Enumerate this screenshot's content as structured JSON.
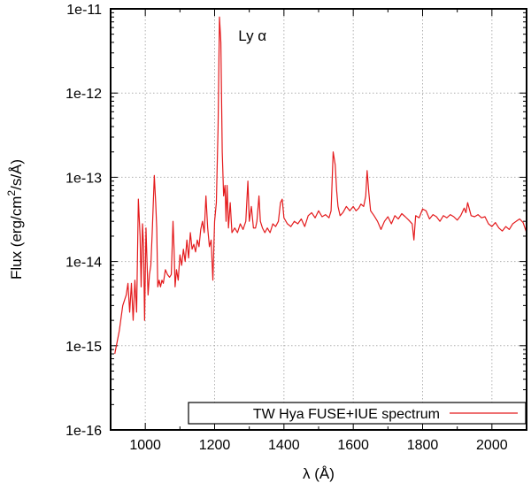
{
  "chart_data": {
    "type": "line",
    "title": "",
    "xlabel": "λ (Å)",
    "ylabel_parts": [
      "Flux (erg/cm",
      "2",
      "/s/Å)"
    ],
    "xlim": [
      900,
      2100
    ],
    "ylim": [
      1e-16,
      1e-11
    ],
    "yscale": "log",
    "grid": true,
    "legend_position": "bottom-right",
    "line_color": "#e41a1c",
    "x_ticks": [
      1000,
      1200,
      1400,
      1600,
      1800,
      2000
    ],
    "x_tick_labels": [
      "1000",
      "1200",
      "1400",
      "1600",
      "1800",
      "2000"
    ],
    "y_ticks": [
      1e-16,
      1e-15,
      1e-14,
      1e-13,
      1e-12,
      1e-11
    ],
    "y_tick_labels": [
      "1e-16",
      "1e-15",
      "1e-14",
      "1e-13",
      "1e-12",
      "1e-11"
    ],
    "annotations": [
      {
        "text": "Ly α",
        "x": 1230,
        "y": 5e-12
      }
    ],
    "series": [
      {
        "name": "TW Hya FUSE+IUE spectrum",
        "points": [
          [
            912,
            8e-16
          ],
          [
            925,
            1.5e-15
          ],
          [
            935,
            3e-15
          ],
          [
            945,
            4e-15
          ],
          [
            950,
            5.5e-15
          ],
          [
            955,
            2.5e-15
          ],
          [
            960,
            5.5e-15
          ],
          [
            965,
            2e-15
          ],
          [
            970,
            6e-15
          ],
          [
            975,
            2.5e-15
          ],
          [
            980,
            5.5e-14
          ],
          [
            985,
            2e-14
          ],
          [
            988,
            5e-15
          ],
          [
            992,
            2.8e-14
          ],
          [
            995,
            1.5e-14
          ],
          [
            998,
            2e-15
          ],
          [
            1002,
            2.5e-14
          ],
          [
            1008,
            4e-15
          ],
          [
            1012,
            7e-15
          ],
          [
            1016,
            9e-15
          ],
          [
            1020,
            2.2e-14
          ],
          [
            1026,
            1.05e-13
          ],
          [
            1030,
            5e-14
          ],
          [
            1033,
            2.5e-14
          ],
          [
            1036,
            5e-15
          ],
          [
            1040,
            6e-15
          ],
          [
            1044,
            5e-15
          ],
          [
            1048,
            6e-15
          ],
          [
            1052,
            5.5e-15
          ],
          [
            1058,
            8e-15
          ],
          [
            1064,
            7e-15
          ],
          [
            1070,
            6.5e-15
          ],
          [
            1075,
            7e-15
          ],
          [
            1080,
            3e-14
          ],
          [
            1083,
            1.4e-14
          ],
          [
            1086,
            5e-15
          ],
          [
            1090,
            8e-15
          ],
          [
            1095,
            6e-15
          ],
          [
            1100,
            1.2e-14
          ],
          [
            1105,
            9e-15
          ],
          [
            1110,
            1.4e-14
          ],
          [
            1115,
            1e-14
          ],
          [
            1120,
            1.8e-14
          ],
          [
            1125,
            1.1e-14
          ],
          [
            1130,
            2.2e-14
          ],
          [
            1135,
            1.4e-14
          ],
          [
            1140,
            1.6e-14
          ],
          [
            1145,
            1.3e-14
          ],
          [
            1150,
            1.8e-14
          ],
          [
            1155,
            1.5e-14
          ],
          [
            1160,
            2.4e-14
          ],
          [
            1165,
            3e-14
          ],
          [
            1170,
            2.2e-14
          ],
          [
            1175,
            6e-14
          ],
          [
            1180,
            2.5e-14
          ],
          [
            1185,
            1.5e-14
          ],
          [
            1190,
            1.8e-14
          ],
          [
            1195,
            6e-15
          ],
          [
            1200,
            3e-14
          ],
          [
            1205,
            5e-14
          ],
          [
            1210,
            4e-13
          ],
          [
            1214,
            8e-12
          ],
          [
            1218,
            4e-12
          ],
          [
            1222,
            2e-13
          ],
          [
            1226,
            6e-14
          ],
          [
            1230,
            8e-14
          ],
          [
            1233,
            3e-14
          ],
          [
            1236,
            8e-14
          ],
          [
            1240,
            2.5e-14
          ],
          [
            1245,
            5e-14
          ],
          [
            1250,
            2.2e-14
          ],
          [
            1258,
            2.5e-14
          ],
          [
            1266,
            2.2e-14
          ],
          [
            1274,
            2.8e-14
          ],
          [
            1282,
            2.4e-14
          ],
          [
            1290,
            3e-14
          ],
          [
            1296,
            9e-14
          ],
          [
            1300,
            3e-14
          ],
          [
            1306,
            4.5e-14
          ],
          [
            1312,
            2.5e-14
          ],
          [
            1318,
            2.5e-14
          ],
          [
            1322,
            3e-14
          ],
          [
            1328,
            6e-14
          ],
          [
            1332,
            3e-14
          ],
          [
            1338,
            2.5e-14
          ],
          [
            1345,
            2.2e-14
          ],
          [
            1352,
            2.5e-14
          ],
          [
            1360,
            2.2e-14
          ],
          [
            1368,
            2.8e-14
          ],
          [
            1376,
            2.6e-14
          ],
          [
            1384,
            3e-14
          ],
          [
            1390,
            5e-14
          ],
          [
            1395,
            5.5e-14
          ],
          [
            1400,
            3.3e-14
          ],
          [
            1410,
            2.8e-14
          ],
          [
            1420,
            2.6e-14
          ],
          [
            1430,
            3e-14
          ],
          [
            1440,
            2.8e-14
          ],
          [
            1450,
            3.2e-14
          ],
          [
            1460,
            2.6e-14
          ],
          [
            1470,
            3.5e-14
          ],
          [
            1480,
            3.8e-14
          ],
          [
            1490,
            3.3e-14
          ],
          [
            1500,
            4e-14
          ],
          [
            1510,
            3.4e-14
          ],
          [
            1520,
            3.6e-14
          ],
          [
            1530,
            3.3e-14
          ],
          [
            1536,
            4e-14
          ],
          [
            1542,
            2e-13
          ],
          [
            1548,
            1.4e-13
          ],
          [
            1552,
            7e-14
          ],
          [
            1556,
            4.5e-14
          ],
          [
            1562,
            3.5e-14
          ],
          [
            1570,
            3.8e-14
          ],
          [
            1580,
            4.5e-14
          ],
          [
            1590,
            4e-14
          ],
          [
            1600,
            4.5e-14
          ],
          [
            1608,
            4e-14
          ],
          [
            1616,
            4.3e-14
          ],
          [
            1622,
            4.8e-14
          ],
          [
            1630,
            4.5e-14
          ],
          [
            1636,
            6e-14
          ],
          [
            1640,
            1.2e-13
          ],
          [
            1645,
            6.5e-14
          ],
          [
            1650,
            4e-14
          ],
          [
            1660,
            3.5e-14
          ],
          [
            1670,
            3e-14
          ],
          [
            1680,
            2.4e-14
          ],
          [
            1690,
            3e-14
          ],
          [
            1700,
            3.4e-14
          ],
          [
            1710,
            2.8e-14
          ],
          [
            1720,
            3.5e-14
          ],
          [
            1730,
            3.2e-14
          ],
          [
            1740,
            3.7e-14
          ],
          [
            1750,
            3.4e-14
          ],
          [
            1760,
            3.1e-14
          ],
          [
            1770,
            2.8e-14
          ],
          [
            1775,
            1.8e-14
          ],
          [
            1780,
            3.5e-14
          ],
          [
            1790,
            3.3e-14
          ],
          [
            1800,
            4.2e-14
          ],
          [
            1810,
            4e-14
          ],
          [
            1820,
            3.2e-14
          ],
          [
            1830,
            3.6e-14
          ],
          [
            1840,
            3.4e-14
          ],
          [
            1850,
            3e-14
          ],
          [
            1860,
            3.5e-14
          ],
          [
            1870,
            3.3e-14
          ],
          [
            1880,
            3.6e-14
          ],
          [
            1890,
            3.4e-14
          ],
          [
            1900,
            3.1e-14
          ],
          [
            1910,
            3.5e-14
          ],
          [
            1920,
            4.3e-14
          ],
          [
            1925,
            3.8e-14
          ],
          [
            1930,
            5e-14
          ],
          [
            1940,
            3.5e-14
          ],
          [
            1950,
            3.4e-14
          ],
          [
            1960,
            3.6e-14
          ],
          [
            1970,
            3.3e-14
          ],
          [
            1980,
            3.4e-14
          ],
          [
            1990,
            2.8e-14
          ],
          [
            2000,
            2.6e-14
          ],
          [
            2010,
            2.9e-14
          ],
          [
            2020,
            2.5e-14
          ],
          [
            2030,
            2.3e-14
          ],
          [
            2040,
            2.6e-14
          ],
          [
            2050,
            2.4e-14
          ],
          [
            2060,
            2.8e-14
          ],
          [
            2070,
            3e-14
          ],
          [
            2080,
            3.2e-14
          ],
          [
            2090,
            2.9e-14
          ],
          [
            2100,
            2.2e-14
          ]
        ]
      }
    ]
  }
}
